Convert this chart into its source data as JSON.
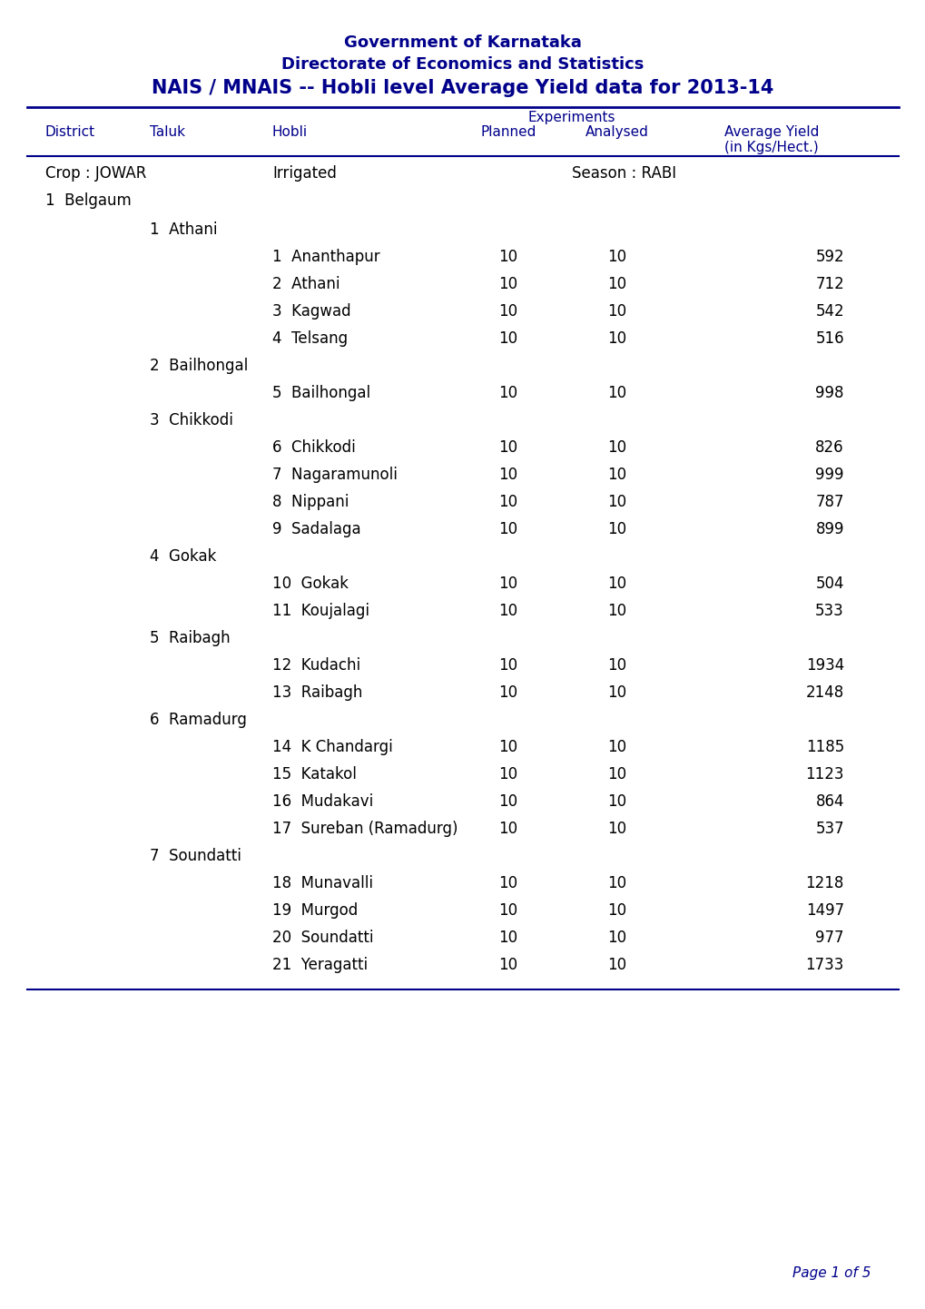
{
  "title1": "Government of Karnataka",
  "title2": "Directorate of Economics and Statistics",
  "title3": "NAIS / MNAIS -- Hobli level Average Yield data for 2013-14",
  "header_col1": "District",
  "header_col2": "Taluk",
  "header_col3": "Hobli",
  "header_exp": "Experiments",
  "header_planned": "Planned",
  "header_analysed": "Analysed",
  "header_avg": "Average Yield\n(in Kgs/Hect.)",
  "crop": "Crop : JOWAR",
  "irrigated": "Irrigated",
  "season": "Season : RABI",
  "district": "1  Belgaum",
  "blue_color": "#00008B",
  "page_text": "Page 1 of 5",
  "rows": [
    {
      "type": "taluk",
      "taluk_num": 1,
      "taluk_name": "Athani"
    },
    {
      "type": "hobli",
      "num": 1,
      "name": "Ananthapur",
      "planned": 10,
      "analysed": 10,
      "yield": 592
    },
    {
      "type": "hobli",
      "num": 2,
      "name": "Athani",
      "planned": 10,
      "analysed": 10,
      "yield": 712
    },
    {
      "type": "hobli",
      "num": 3,
      "name": "Kagwad",
      "planned": 10,
      "analysed": 10,
      "yield": 542
    },
    {
      "type": "hobli",
      "num": 4,
      "name": "Telsang",
      "planned": 10,
      "analysed": 10,
      "yield": 516
    },
    {
      "type": "taluk",
      "taluk_num": 2,
      "taluk_name": "Bailhongal"
    },
    {
      "type": "hobli",
      "num": 5,
      "name": "Bailhongal",
      "planned": 10,
      "analysed": 10,
      "yield": 998
    },
    {
      "type": "taluk",
      "taluk_num": 3,
      "taluk_name": "Chikkodi"
    },
    {
      "type": "hobli",
      "num": 6,
      "name": "Chikkodi",
      "planned": 10,
      "analysed": 10,
      "yield": 826
    },
    {
      "type": "hobli",
      "num": 7,
      "name": "Nagaramunoli",
      "planned": 10,
      "analysed": 10,
      "yield": 999
    },
    {
      "type": "hobli",
      "num": 8,
      "name": "Nippani",
      "planned": 10,
      "analysed": 10,
      "yield": 787
    },
    {
      "type": "hobli",
      "num": 9,
      "name": "Sadalaga",
      "planned": 10,
      "analysed": 10,
      "yield": 899
    },
    {
      "type": "taluk",
      "taluk_num": 4,
      "taluk_name": "Gokak"
    },
    {
      "type": "hobli",
      "num": 10,
      "name": "Gokak",
      "planned": 10,
      "analysed": 10,
      "yield": 504
    },
    {
      "type": "hobli",
      "num": 11,
      "name": "Koujalagi",
      "planned": 10,
      "analysed": 10,
      "yield": 533
    },
    {
      "type": "taluk",
      "taluk_num": 5,
      "taluk_name": "Raibagh"
    },
    {
      "type": "hobli",
      "num": 12,
      "name": "Kudachi",
      "planned": 10,
      "analysed": 10,
      "yield": 1934
    },
    {
      "type": "hobli",
      "num": 13,
      "name": "Raibagh",
      "planned": 10,
      "analysed": 10,
      "yield": 2148
    },
    {
      "type": "taluk",
      "taluk_num": 6,
      "taluk_name": "Ramadurg"
    },
    {
      "type": "hobli",
      "num": 14,
      "name": "K Chandargi",
      "planned": 10,
      "analysed": 10,
      "yield": 1185
    },
    {
      "type": "hobli",
      "num": 15,
      "name": "Katakol",
      "planned": 10,
      "analysed": 10,
      "yield": 1123
    },
    {
      "type": "hobli",
      "num": 16,
      "name": "Mudakavi",
      "planned": 10,
      "analysed": 10,
      "yield": 864
    },
    {
      "type": "hobli",
      "num": 17,
      "name": "Sureban (Ramadurg)",
      "planned": 10,
      "analysed": 10,
      "yield": 537
    },
    {
      "type": "taluk",
      "taluk_num": 7,
      "taluk_name": "Soundatti"
    },
    {
      "type": "hobli",
      "num": 18,
      "name": "Munavalli",
      "planned": 10,
      "analysed": 10,
      "yield": 1218
    },
    {
      "type": "hobli",
      "num": 19,
      "name": "Murgod",
      "planned": 10,
      "analysed": 10,
      "yield": 1497
    },
    {
      "type": "hobli",
      "num": 20,
      "name": "Soundatti",
      "planned": 10,
      "analysed": 10,
      "yield": 977
    },
    {
      "type": "hobli",
      "num": 21,
      "name": "Yeragatti",
      "planned": 10,
      "analysed": 10,
      "yield": 1733
    }
  ]
}
